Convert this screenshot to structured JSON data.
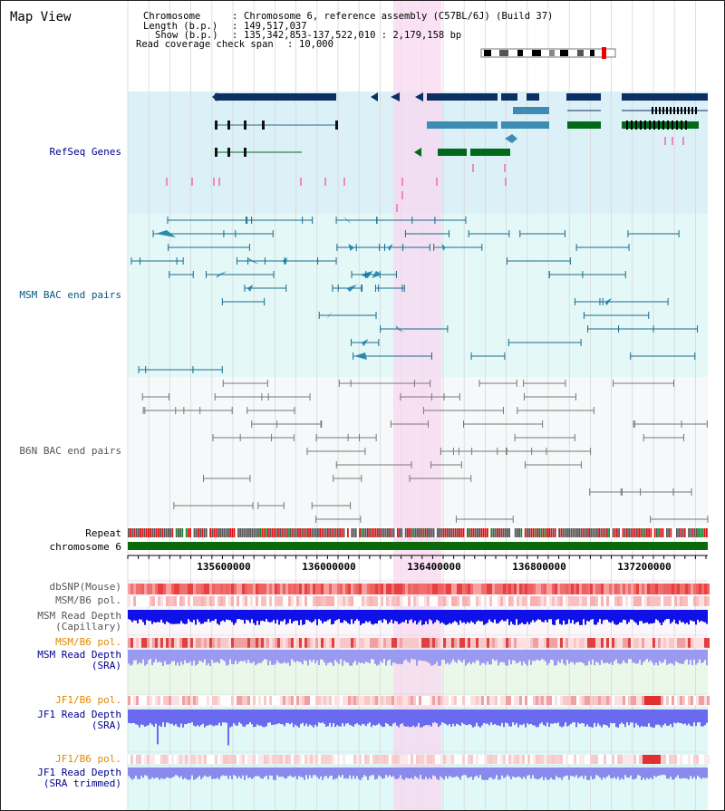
{
  "title": "Map View",
  "header": {
    "chromosome_label": "Chromosome",
    "chromosome_value": "Chromosome 6, reference assembly (C57BL/6J) (Build 37)",
    "length_label": "Length (b.p.)",
    "length_value": "149,517,037",
    "show_label": "Show (b.p.)",
    "show_value": "135,342,853-137,522,010 : 2,179,158 bp",
    "span_label": "Read coverage check span",
    "span_value": "10,000"
  },
  "tracks": {
    "refseq": "RefSeq Genes",
    "msm_bac": "MSM BAC end pairs",
    "b6n_bac": "B6N BAC end pairs",
    "repeat": "Repeat",
    "chromosome": "chromosome 6",
    "dbsnp": "dbSNP(Mouse)",
    "msm_b6_pol_1": "MSM/B6 pol.",
    "msm_depth_cap_1": "MSM Read Depth",
    "msm_depth_cap_2": "(Capillary)",
    "msm_b6_pol_2": "MSM/B6 pol.",
    "msm_depth_sra_1": "MSM Read Depth",
    "msm_depth_sra_2": "(SRA)",
    "jf1_b6_pol_1": "JF1/B6 pol.",
    "jf1_depth_sra_1": "JF1 Read Depth",
    "jf1_depth_sra_2": "(SRA)",
    "jf1_b6_pol_2": "JF1/B6 pol.",
    "jf1_depth_trim_1": "JF1 Read Depth",
    "jf1_depth_trim_2": "(SRA trimmed)"
  },
  "axis_ticks": [
    "135600000",
    "136000000",
    "136400000",
    "136800000",
    "137200000"
  ],
  "colors": {
    "refseq_bg": "#dcf0f8",
    "msm_bac_bg": "#e4f8f8",
    "b6n_bac_bg": "#f6f8fa",
    "highlight": "#f8d8f0",
    "gene_dark": "#0d3064",
    "gene_mid": "#3c8cb4",
    "gene_green": "#006a1a",
    "chromosome_bar": "#0a6a0a",
    "track_label_blue": "#000090",
    "track_label_orange": "#e08800",
    "track_label_teal": "#005880"
  }
}
